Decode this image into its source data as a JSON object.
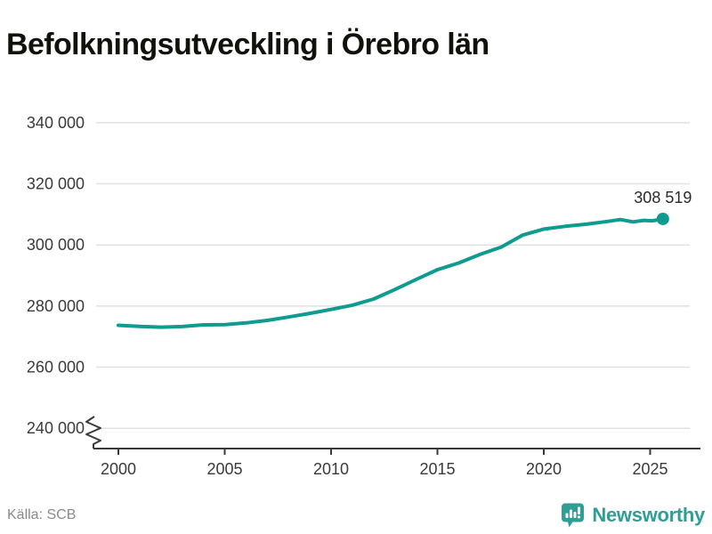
{
  "title": "Befolkningsutveckling i Örebro län",
  "source": {
    "label": "Källa: SCB"
  },
  "branding": {
    "name": "Newsworthy",
    "icon": "newsworthy-bubble-chart-icon"
  },
  "colors": {
    "line": "#0f9b8f",
    "brand": "#2f9e95",
    "grid": "#e1e1e1",
    "axis": "#3a3a3a",
    "label": "#2b2b2b",
    "muted": "#8a8a8a",
    "title": "#12120d"
  },
  "chart_data": {
    "type": "line",
    "title": "Befolkningsutveckling i Örebro län",
    "xlabel": "",
    "ylabel": "",
    "grid": "horizontal",
    "legend": "none",
    "axis_break": true,
    "xlim": [
      1999.3,
      2026.8
    ],
    "ylim_display": [
      240000,
      340000
    ],
    "x_ticks": [
      2000,
      2005,
      2010,
      2015,
      2020,
      2025
    ],
    "y_ticks": [
      240000,
      260000,
      280000,
      300000,
      320000,
      340000
    ],
    "y_tick_labels": [
      "240 000",
      "260 000",
      "280 000",
      "300 000",
      "320 000",
      "340 000"
    ],
    "end_label": {
      "text": "308 519",
      "value": 308519
    },
    "series": [
      {
        "name": "Befolkning i Örebro län",
        "points": [
          [
            2000,
            273700
          ],
          [
            2001,
            273350
          ],
          [
            2002,
            273100
          ],
          [
            2003,
            273300
          ],
          [
            2004,
            273850
          ],
          [
            2005,
            273900
          ],
          [
            2006,
            274500
          ],
          [
            2007,
            275300
          ],
          [
            2008,
            276400
          ],
          [
            2009,
            277600
          ],
          [
            2010,
            278900
          ],
          [
            2011,
            280300
          ],
          [
            2012,
            282300
          ],
          [
            2013,
            285400
          ],
          [
            2014,
            288700
          ],
          [
            2015,
            291900
          ],
          [
            2016,
            294100
          ],
          [
            2017,
            296900
          ],
          [
            2018,
            299300
          ],
          [
            2019,
            303200
          ],
          [
            2020,
            305200
          ],
          [
            2021,
            306100
          ],
          [
            2022,
            306800
          ],
          [
            2023,
            307700
          ],
          [
            2023.6,
            308300
          ],
          [
            2024.2,
            307550
          ],
          [
            2024.7,
            308050
          ],
          [
            2025.1,
            307900
          ],
          [
            2025.6,
            308519
          ]
        ]
      }
    ]
  }
}
